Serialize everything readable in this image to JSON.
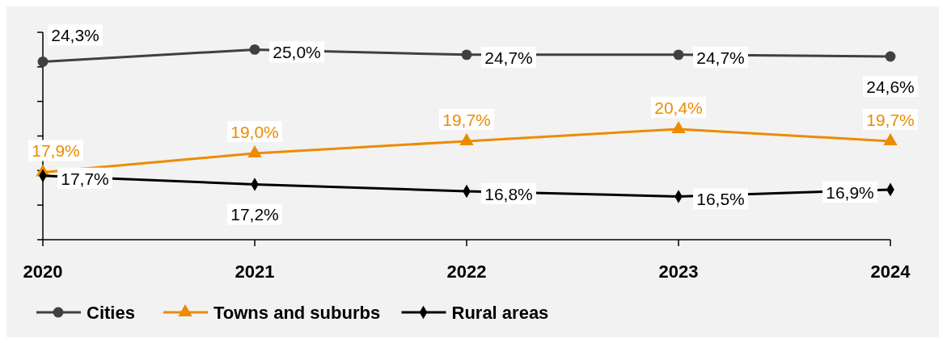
{
  "chart_data": {
    "type": "line",
    "categories": [
      "2020",
      "2021",
      "2022",
      "2023",
      "2024"
    ],
    "series": [
      {
        "name": "Cities",
        "color": "#404040",
        "marker": "circle",
        "values": [
          24.3,
          25.0,
          24.7,
          24.7,
          24.6
        ],
        "value_labels": [
          "24,3%",
          "25,0%",
          "24,7%",
          "24,7%",
          "24,6%"
        ]
      },
      {
        "name": "Towns and suburbs",
        "color": "#ed8b00",
        "marker": "triangle",
        "values": [
          17.9,
          19.0,
          19.7,
          20.4,
          19.7
        ],
        "value_labels": [
          "17,9%",
          "19,0%",
          "19,7%",
          "20,4%",
          "19,7%"
        ]
      },
      {
        "name": "Rural areas",
        "color": "#000000",
        "marker": "diamond",
        "values": [
          17.7,
          17.2,
          16.8,
          16.5,
          16.9
        ],
        "value_labels": [
          "17,7%",
          "17,2%",
          "16,8%",
          "16,5%",
          "16,9%"
        ]
      }
    ],
    "ylim": [
      14,
      26
    ],
    "yticks": [
      {
        "value": 14,
        "label": null
      },
      {
        "value": 16,
        "label": null
      },
      {
        "value": 18,
        "label": null
      },
      {
        "value": 20,
        "label": null
      },
      {
        "value": 22,
        "label": null
      },
      {
        "value": 24,
        "label": null
      },
      {
        "value": 26,
        "label": null
      }
    ],
    "tick_labels": "x",
    "grid": false,
    "legend": "bottom left",
    "line_style": "solid"
  }
}
